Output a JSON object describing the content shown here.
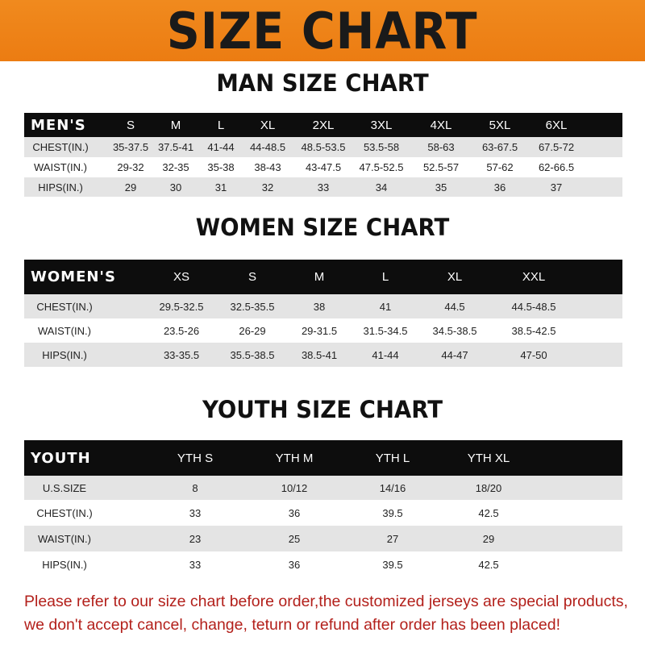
{
  "banner_title": "SIZE CHART",
  "men": {
    "title": "MAN SIZE CHART",
    "header": [
      "MEN'S",
      "S",
      "M",
      "L",
      "XL",
      "2XL",
      "3XL",
      "4XL",
      "5XL",
      "6XL"
    ],
    "rows": [
      [
        "CHEST(IN.)",
        "35-37.5",
        "37.5-41",
        "41-44",
        "44-48.5",
        "48.5-53.5",
        "53.5-58",
        "58-63",
        "63-67.5",
        "67.5-72"
      ],
      [
        "WAIST(IN.)",
        "29-32",
        "32-35",
        "35-38",
        "38-43",
        "43-47.5",
        "47.5-52.5",
        "52.5-57",
        "57-62",
        "62-66.5"
      ],
      [
        "HIPS(IN.)",
        "29",
        "30",
        "31",
        "32",
        "33",
        "34",
        "35",
        "36",
        "37"
      ]
    ]
  },
  "women": {
    "title": "WOMEN SIZE CHART",
    "header": [
      "WOMEN'S",
      "XS",
      "S",
      "M",
      "L",
      "XL",
      "XXL"
    ],
    "rows": [
      [
        "CHEST(IN.)",
        "29.5-32.5",
        "32.5-35.5",
        "38",
        "41",
        "44.5",
        "44.5-48.5"
      ],
      [
        "WAIST(IN.)",
        "23.5-26",
        "26-29",
        "29-31.5",
        "31.5-34.5",
        "34.5-38.5",
        "38.5-42.5"
      ],
      [
        "HIPS(IN.)",
        "33-35.5",
        "35.5-38.5",
        "38.5-41",
        "41-44",
        "44-47",
        "47-50"
      ]
    ]
  },
  "youth": {
    "title": "YOUTH SIZE CHART",
    "header": [
      "YOUTH",
      "YTH S",
      "YTH M",
      "YTH L",
      "YTH XL"
    ],
    "rows": [
      [
        "U.S.SIZE",
        "8",
        "10/12",
        "14/16",
        "18/20"
      ],
      [
        "CHEST(IN.)",
        "33",
        "36",
        "39.5",
        "42.5"
      ],
      [
        "WAIST(IN.)",
        "23",
        "25",
        "27",
        "29"
      ],
      [
        "HIPS(IN.)",
        "33",
        "36",
        "39.5",
        "42.5"
      ]
    ]
  },
  "note": [
    "Please refer to our size chart before order,the customized jerseys are special products,",
    "we don't accept cancel, change, teturn or refund after order has been placed!"
  ],
  "colors": {
    "banner": "#ec7c12",
    "header_bg": "#0d0d0d",
    "stripe": "#e4e4e4",
    "note": "#b3201b"
  }
}
